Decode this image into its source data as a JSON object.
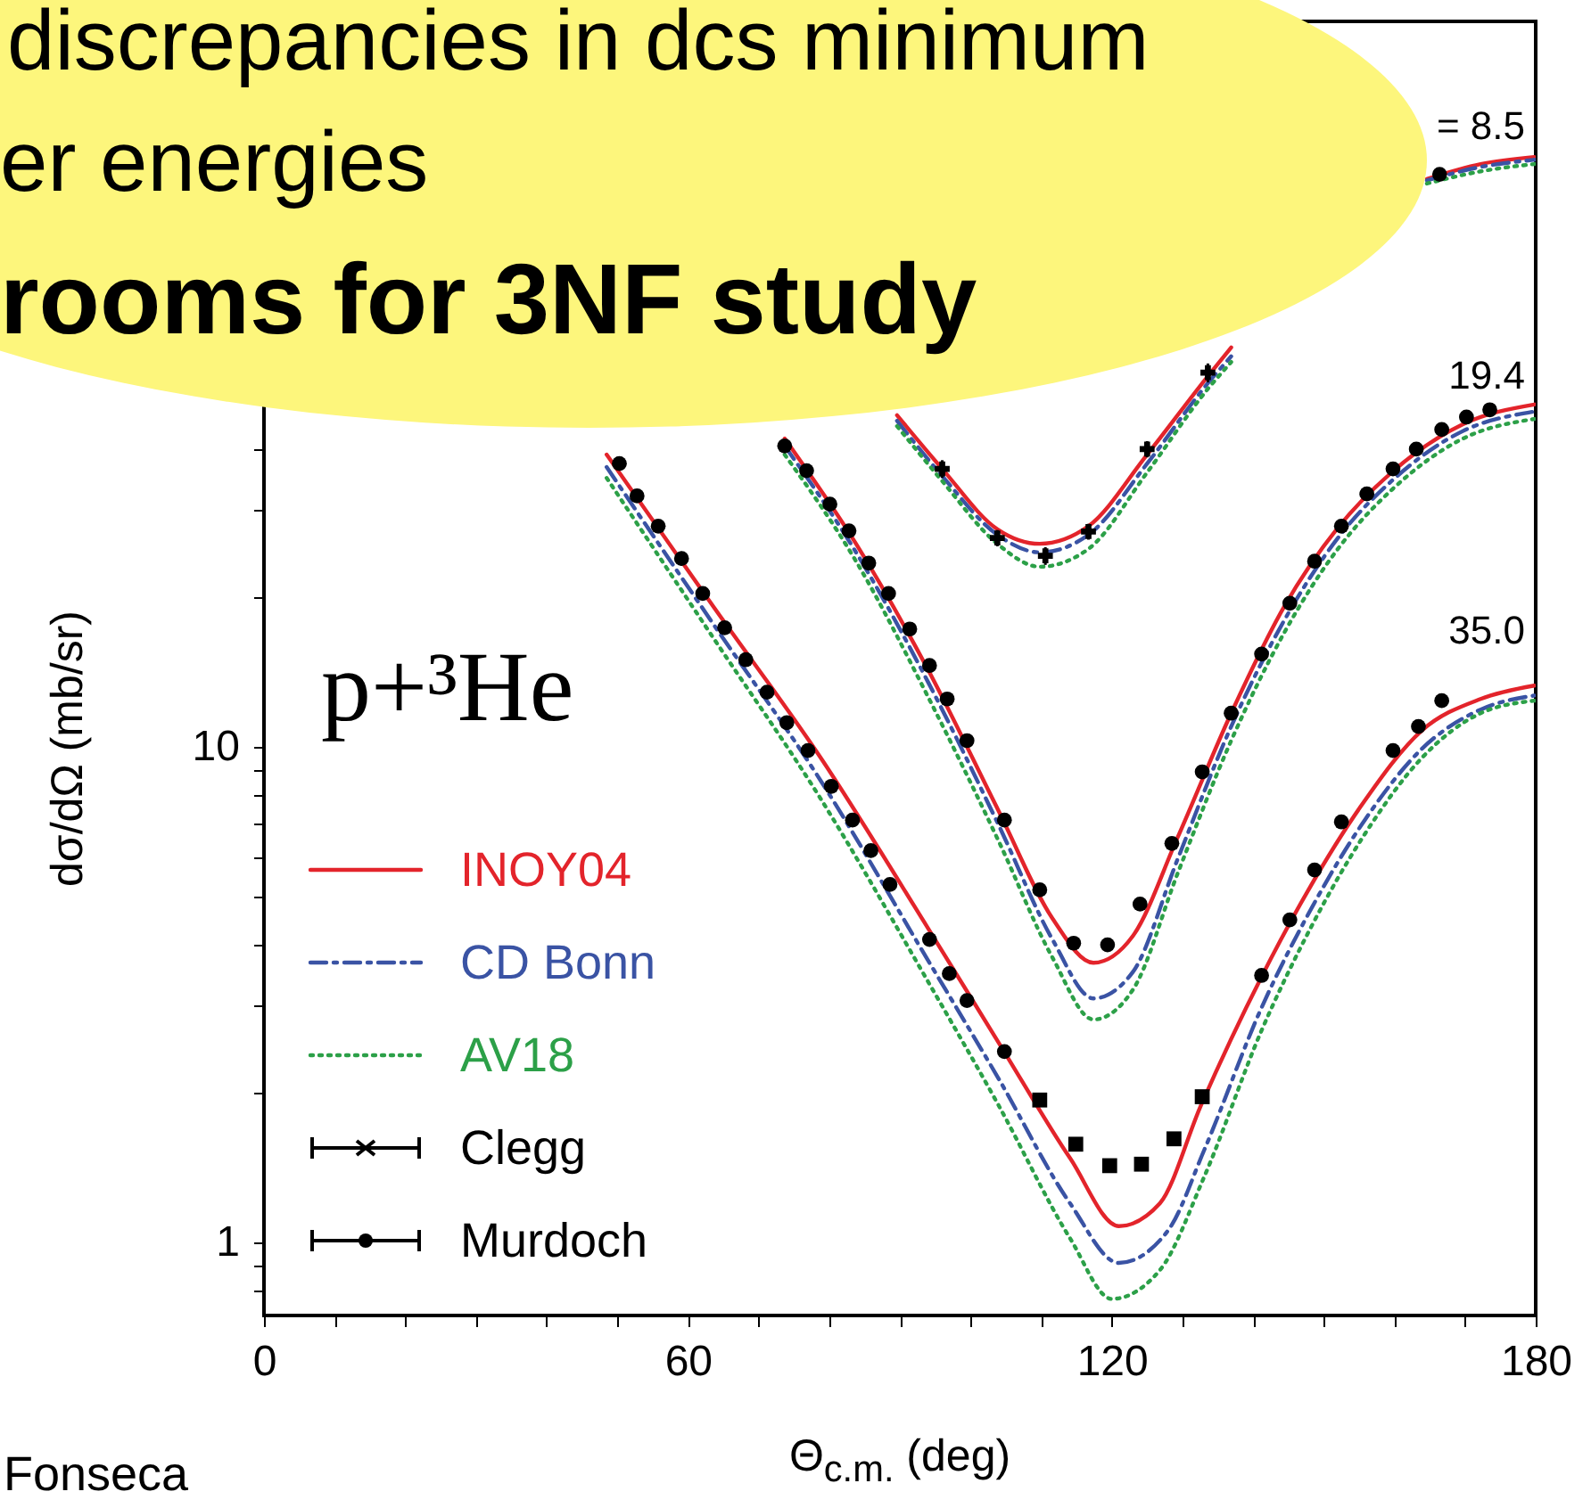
{
  "chart_data": {
    "type": "line",
    "xlabel": "Θ$_{c.m.}$ (deg)",
    "ylabel": "dσ/dΩ (mb/sr)",
    "annotations": [
      "discrepancies in dcs minimum",
      "er energies",
      "rooms for 3NF study",
      "Fonseca",
      "p+³He",
      "= 8.5",
      "19.4",
      "35.0"
    ],
    "xlim": [
      0,
      180
    ],
    "ylim": [
      0.713,
      291
    ],
    "xticks": [
      0,
      {
        "value": 10,
        "label": null
      },
      {
        "value": 20,
        "label": null
      },
      {
        "value": 30,
        "label": null
      },
      {
        "value": 40,
        "label": null
      },
      {
        "value": 50,
        "label": null
      },
      60,
      {
        "value": 70,
        "label": null
      },
      {
        "value": 80,
        "label": null
      },
      {
        "value": 90,
        "label": null
      },
      {
        "value": 100,
        "label": null
      },
      {
        "value": 110,
        "label": null
      },
      120,
      {
        "value": 130,
        "label": null
      },
      {
        "value": 140,
        "label": null
      },
      {
        "value": 150,
        "label": null
      },
      {
        "value": 160,
        "label": null
      },
      {
        "value": 170,
        "label": null
      },
      180
    ],
    "yticks": [
      {
        "value": 0.8,
        "label": null
      },
      {
        "value": 0.9,
        "label": null
      },
      1,
      {
        "value": 2,
        "label": null
      },
      {
        "value": 3,
        "label": null
      },
      {
        "value": 4,
        "label": null
      },
      {
        "value": 5,
        "label": null
      },
      {
        "value": 6,
        "label": null
      },
      {
        "value": 7,
        "label": null
      },
      {
        "value": 8,
        "label": null
      },
      {
        "value": 9,
        "label": null
      },
      10,
      {
        "value": 20,
        "label": null
      },
      {
        "value": 30,
        "label": null
      },
      {
        "value": 40,
        "label": null
      },
      {
        "value": 50,
        "label": null
      },
      {
        "value": 60,
        "label": null
      },
      {
        "value": 70,
        "label": null
      },
      {
        "value": 80,
        "label": null
      },
      {
        "value": 90,
        "label": null
      },
      {
        "value": 100,
        "label": null
      },
      {
        "value": 200,
        "label": null
      }
    ],
    "log": true,
    "legend": "bottom left",
    "series": [
      {
        "name": "INOY04",
        "type": "line",
        "color": "#e3242b",
        "line_style": "solid",
        "x": [
          89.6,
          96.0,
          103.8,
          109.8,
          116.7,
          125.0,
          133.6,
          136.9,
          null,
          164.6,
          172.2,
          179.8,
          null,
          73.7,
          83.8,
          93.9,
          104.0,
          111.6,
          117.4,
          123.0,
          129.3,
          136.9,
          144.4,
          152.0,
          159.6,
          169.7,
          179.8,
          null,
          48.5,
          63.6,
          78.8,
          93.9,
          104.0,
          114.1,
          121.0,
          126.8,
          132.6,
          141.2,
          147.7,
          155.3,
          163.9,
          172.2,
          179.8
        ],
        "values": [
          46.7,
          36.4,
          27.5,
          25.7,
          27.9,
          38.9,
          56.0,
          64.0,
          null,
          140,
          150,
          155,
          null,
          41.9,
          25.7,
          14.4,
          7.42,
          4.51,
          3.67,
          4.16,
          6.56,
          11.7,
          19.2,
          27.7,
          35.8,
          44.8,
          49.1,
          null,
          38.9,
          19.2,
          9.51,
          4.33,
          2.53,
          1.48,
          1.08,
          1.2,
          1.89,
          3.44,
          5.11,
          7.61,
          10.8,
          12.5,
          13.3
        ]
      },
      {
        "name": "CD Bonn",
        "type": "line",
        "color": "#3a53a4",
        "line_style": "dashed",
        "x": [
          89.6,
          96.0,
          103.8,
          109.8,
          116.7,
          125.0,
          133.6,
          136.9,
          null,
          164.6,
          172.2,
          179.8,
          null,
          73.7,
          83.8,
          93.9,
          104.0,
          111.6,
          117.4,
          123.0,
          129.3,
          136.9,
          144.4,
          152.0,
          159.6,
          169.7,
          179.8,
          null,
          48.5,
          63.6,
          78.8,
          93.9,
          104.0,
          114.1,
          121.0,
          128.0,
          133.1,
          141.2,
          148.2,
          155.8,
          163.9,
          172.2,
          179.8
        ],
        "values": [
          45.5,
          35.2,
          26.8,
          24.7,
          26.8,
          37.3,
          54.2,
          61.4,
          null,
          139,
          148,
          153,
          null,
          40.5,
          24.7,
          13.6,
          6.95,
          4.09,
          3.11,
          3.52,
          5.93,
          11.0,
          18.0,
          26.4,
          34.4,
          43.4,
          47.5,
          null,
          36.7,
          17.7,
          8.55,
          3.73,
          2.14,
          1.2,
          0.91,
          1.06,
          1.54,
          2.98,
          4.71,
          7.12,
          9.92,
          11.9,
          12.7
        ]
      },
      {
        "name": "AV18",
        "type": "line",
        "color": "#2ca048",
        "line_style": "dotted",
        "x": [
          89.6,
          96.0,
          103.8,
          109.8,
          116.7,
          125.0,
          133.6,
          136.9,
          null,
          164.6,
          172.2,
          179.8,
          null,
          73.7,
          83.8,
          93.9,
          104.0,
          111.6,
          117.4,
          123.0,
          129.3,
          136.9,
          144.4,
          152.0,
          159.6,
          169.7,
          179.8,
          null,
          48.5,
          63.6,
          78.8,
          93.9,
          104.0,
          114.1,
          120.0,
          126.8,
          133.1,
          141.2,
          148.2,
          155.8,
          163.9,
          172.2,
          179.8
        ],
        "values": [
          44.4,
          34.4,
          25.7,
          23.1,
          25.1,
          35.8,
          52.8,
          59.8,
          null,
          137,
          145,
          150,
          null,
          38.9,
          23.7,
          12.7,
          6.45,
          3.76,
          2.82,
          3.24,
          5.55,
          10.3,
          17.0,
          25.1,
          33.0,
          41.9,
          45.9,
          null,
          34.9,
          16.6,
          7.86,
          3.38,
          1.89,
          1.02,
          0.77,
          0.88,
          1.36,
          2.68,
          4.33,
          6.67,
          9.51,
          11.7,
          12.4
        ]
      },
      {
        "name": "Clegg",
        "type": "scatter",
        "color": "#000000",
        "marker": "cross",
        "x": [
          96.0,
          103.8,
          110.6,
          116.7,
          125.0,
          133.6
        ],
        "values": [
          36.4,
          26.4,
          24.3,
          27.2,
          39.9,
          56.9
        ],
        "errors": [
          1.5,
          1,
          1,
          1,
          1.5,
          2.5
        ]
      },
      {
        "name": "Murdoch",
        "type": "scatter",
        "color": "#000000",
        "marker": "circle",
        "x": [
          166.4,
          73.7,
          76.8,
          80.1,
          82.8,
          85.6,
          88.4,
          91.4,
          94.2,
          96.7,
          99.5,
          104.8,
          109.8,
          114.6,
          119.4,
          124.0,
          128.5,
          132.8,
          136.9,
          141.2,
          145.2,
          148.7,
          152.5,
          156.1,
          159.8,
          163.1,
          166.7,
          170.2,
          173.5,
          50.3,
          52.8,
          55.8,
          59.1,
          62.1,
          65.2,
          68.2,
          71.2,
          74.0,
          77.0,
          80.3,
          83.3,
          85.9,
          88.6,
          94.2,
          97.0,
          99.5,
          104.8,
          141.2,
          145.2,
          148.7,
          152.5,
          159.8,
          163.4,
          166.7
        ],
        "values": [
          143,
          40.5,
          36.1,
          30.9,
          27.3,
          23.5,
          20.4,
          17.3,
          14.6,
          12.5,
          10.3,
          7.12,
          5.15,
          4.02,
          3.99,
          4.82,
          6.39,
          8.91,
          11.7,
          15.4,
          19.5,
          23.7,
          27.9,
          32.4,
          36.4,
          39.9,
          43.7,
          46.3,
          47.9,
          37.3,
          32.1,
          27.9,
          24.0,
          20.4,
          17.4,
          15.0,
          12.9,
          11.2,
          9.84,
          8.33,
          7.12,
          6.18,
          5.28,
          4.09,
          3.49,
          3.08,
          2.43,
          3.46,
          4.48,
          5.65,
          7.06,
          9.84,
          11.0,
          12.4
        ]
      },
      {
        "type": "scatter",
        "color": "#000000",
        "marker": "square",
        "x": [
          109.8,
          114.9,
          119.7,
          124.2,
          128.8,
          132.8
        ],
        "values": [
          1.94,
          1.58,
          1.43,
          1.44,
          1.62,
          1.97
        ]
      }
    ]
  }
}
